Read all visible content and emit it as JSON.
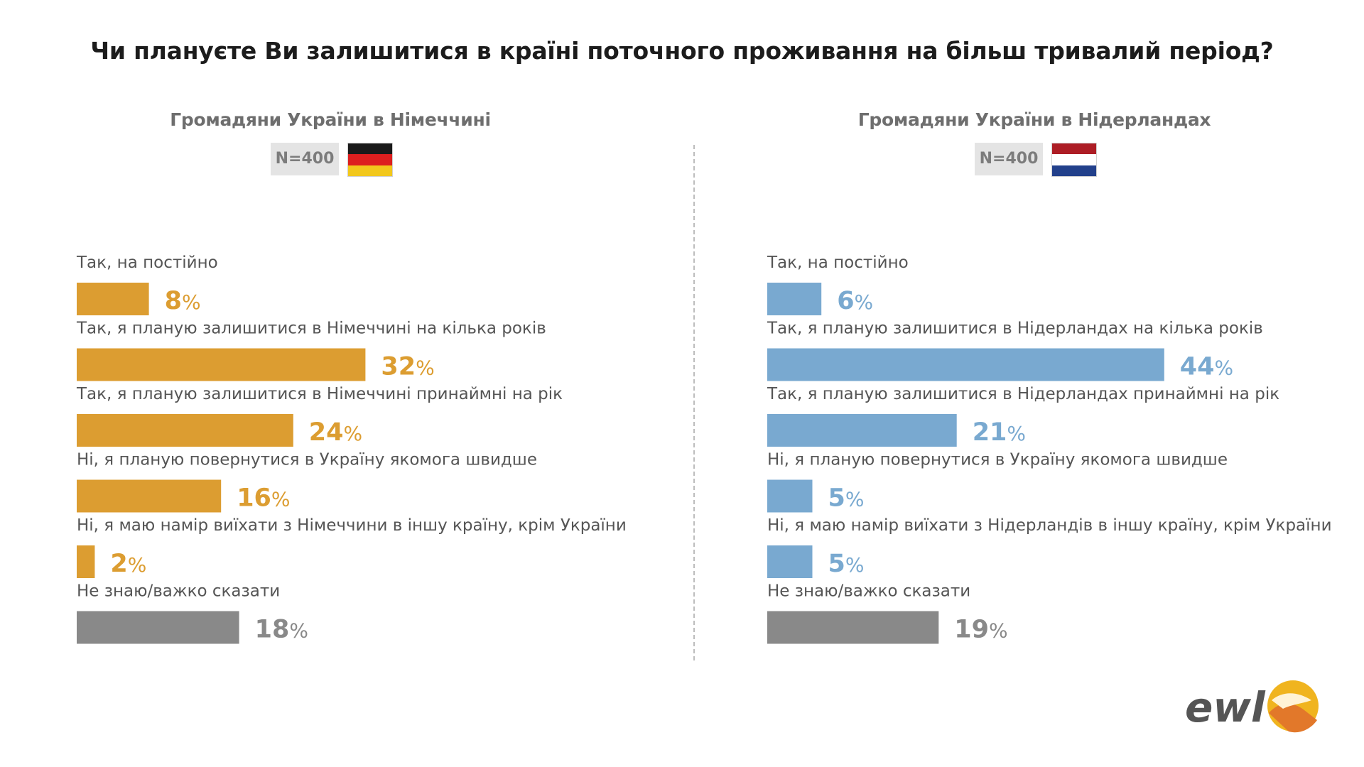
{
  "title": "Чи плануєте Ви залишитися в країні поточного проживання на більш тривалий період?",
  "colors": {
    "germany": "#dc9d31",
    "netherlands": "#79a9d0",
    "neutral": "#898989",
    "de_flag": [
      "#1a1a1a",
      "#dd1f1f",
      "#f2c81c"
    ],
    "nl_flag": [
      "#ad1d25",
      "#ffffff",
      "#22408b"
    ]
  },
  "logo_text": "ewl",
  "chart_data": [
    {
      "type": "bar",
      "title": "Громадяни України в Німеччині",
      "n_label": "N=400",
      "flag_icon": "germany-flag-icon",
      "value_suffix": "%",
      "categories": [
        "Так, на постійно",
        "Так, я планую залишитися в Німеччині на кілька років",
        "Так, я планую залишитися в Німеччині принаймні на рік",
        "Ні, я планую повернутися в Україну якомога швидше",
        "Ні, я маю намір виїхати з Німеччини в іншу країну, крім України",
        "Не знаю/важко сказати"
      ],
      "values": [
        8,
        32,
        24,
        16,
        2,
        18
      ],
      "bar_colors": [
        "#dc9d31",
        "#dc9d31",
        "#dc9d31",
        "#dc9d31",
        "#dc9d31",
        "#898989"
      ],
      "xlim": [
        0,
        44
      ]
    },
    {
      "type": "bar",
      "title": "Громадяни України в Нідерландах",
      "n_label": "N=400",
      "flag_icon": "netherlands-flag-icon",
      "value_suffix": "%",
      "categories": [
        "Так, на постійно",
        "Так, я планую залишитися в Нідерландах на кілька років",
        "Так, я планую залишитися в Нідерландах принаймні на рік",
        "Ні, я планую повернутися в Україну якомога швидше",
        "Ні, я маю намір виїхати з Нідерландів в іншу країну, крім України",
        "Не знаю/важко сказати"
      ],
      "values": [
        6,
        44,
        21,
        5,
        5,
        19
      ],
      "bar_colors": [
        "#79a9d0",
        "#79a9d0",
        "#79a9d0",
        "#79a9d0",
        "#79a9d0",
        "#898989"
      ],
      "xlim": [
        0,
        44
      ]
    }
  ]
}
